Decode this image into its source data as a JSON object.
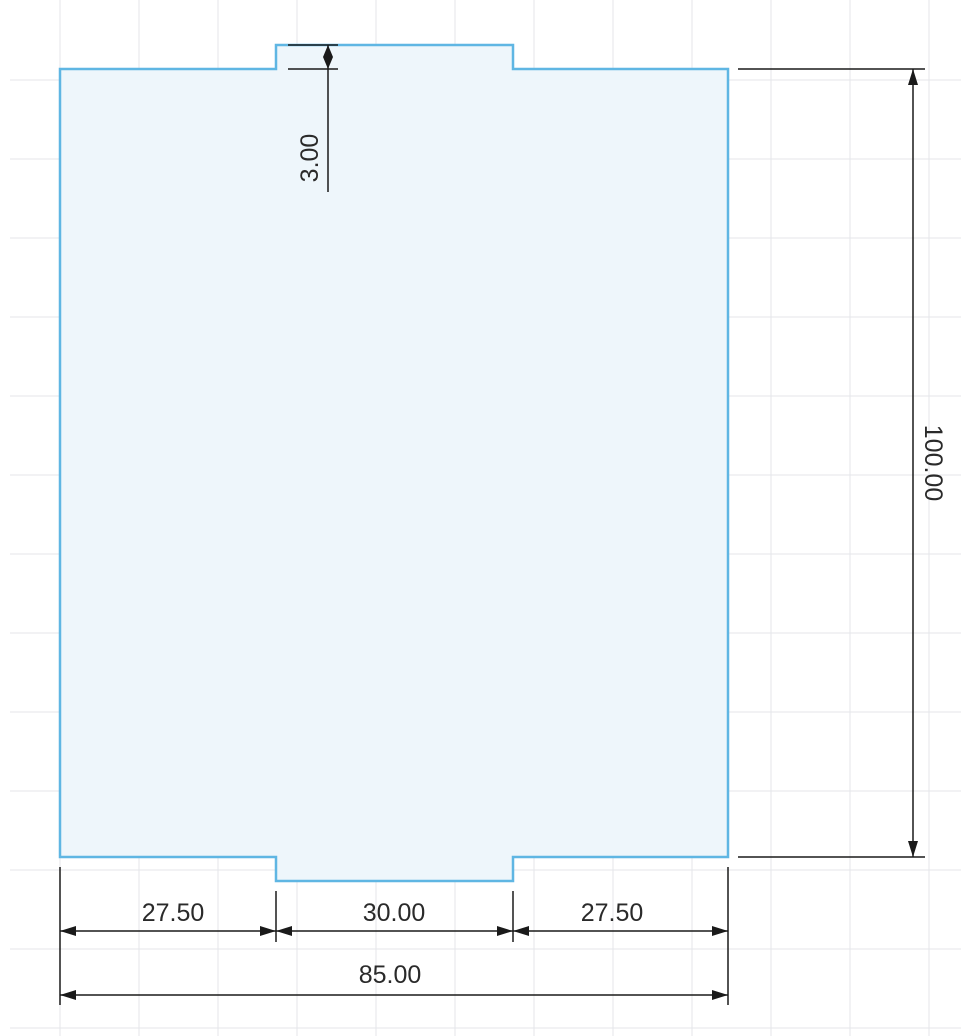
{
  "sketch": {
    "colors": {
      "background": "#ffffff",
      "grid": "#e4e6ea",
      "profile_fill": "#eef6fb",
      "profile_stroke": "#5fb6e3",
      "dimension": "#1a1a1a"
    },
    "dimensions": {
      "tab_offset": "3.00",
      "overall_height": "100.00",
      "left_segment": "27.50",
      "center_segment": "30.00",
      "right_segment": "27.50",
      "overall_width": "85.00"
    }
  }
}
